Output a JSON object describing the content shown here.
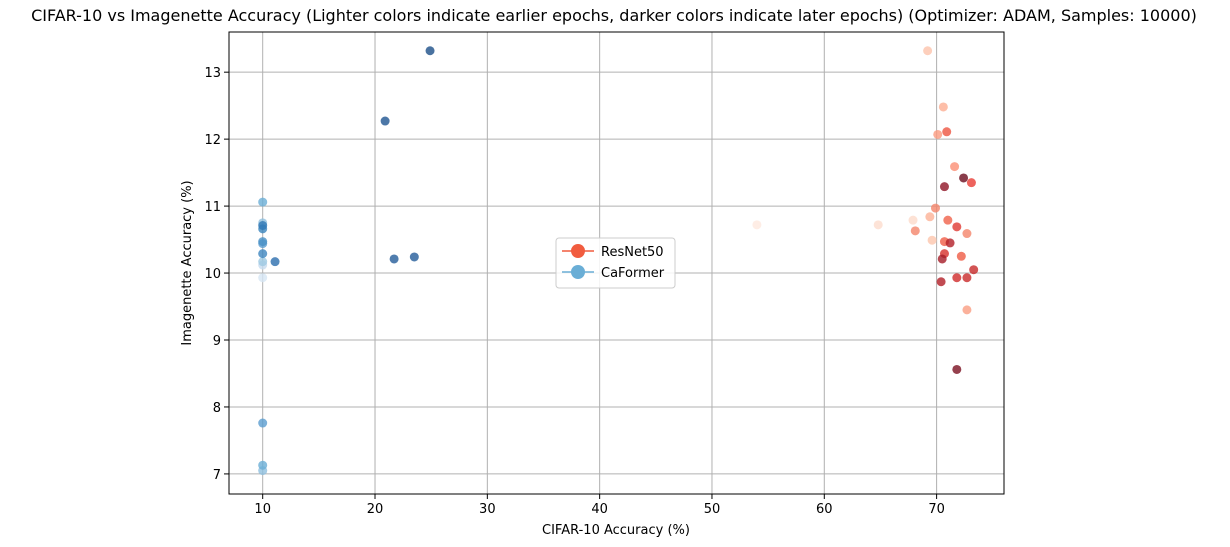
{
  "chart_data": {
    "type": "scatter",
    "title": "CIFAR-10 vs Imagenette Accuracy (Lighter colors indicate earlier epochs, darker colors indicate later epochs) (Optimizer: ADAM, Samples: 10000)",
    "xlabel": "CIFAR-10 Accuracy (%)",
    "ylabel": "Imagenette Accuracy (%)",
    "xlim": [
      7,
      76
    ],
    "ylim": [
      6.7,
      13.6
    ],
    "xticks": [
      10,
      20,
      30,
      40,
      50,
      60,
      70
    ],
    "yticks": [
      7,
      8,
      9,
      10,
      11,
      12,
      13
    ],
    "grid": true,
    "legend_position": "center",
    "series": [
      {
        "name": "ResNet50",
        "legend_color": "#f15c3f",
        "points": [
          {
            "x": 54.0,
            "y": 10.72,
            "color": "#fee8de"
          },
          {
            "x": 64.8,
            "y": 10.72,
            "color": "#fddccd"
          },
          {
            "x": 67.9,
            "y": 10.79,
            "color": "#fddbcb"
          },
          {
            "x": 69.2,
            "y": 13.32,
            "color": "#fcc3ab"
          },
          {
            "x": 69.6,
            "y": 10.49,
            "color": "#fcc6ad"
          },
          {
            "x": 70.6,
            "y": 12.48,
            "color": "#fcae92"
          },
          {
            "x": 70.1,
            "y": 12.07,
            "color": "#fb9a7e"
          },
          {
            "x": 69.4,
            "y": 10.84,
            "color": "#fcb196"
          },
          {
            "x": 68.1,
            "y": 10.63,
            "color": "#f4856a"
          },
          {
            "x": 69.9,
            "y": 10.97,
            "color": "#f4856a"
          },
          {
            "x": 72.7,
            "y": 9.45,
            "color": "#fa9d82"
          },
          {
            "x": 71.6,
            "y": 11.59,
            "color": "#fb8f74"
          },
          {
            "x": 72.7,
            "y": 10.59,
            "color": "#f4856a"
          },
          {
            "x": 70.9,
            "y": 12.11,
            "color": "#ee5541"
          },
          {
            "x": 71.0,
            "y": 10.79,
            "color": "#f0624a"
          },
          {
            "x": 72.2,
            "y": 10.25,
            "color": "#ef5b45"
          },
          {
            "x": 70.7,
            "y": 10.47,
            "color": "#f05d46"
          },
          {
            "x": 73.1,
            "y": 11.35,
            "color": "#e83c34"
          },
          {
            "x": 71.8,
            "y": 10.69,
            "color": "#e03a33"
          },
          {
            "x": 70.7,
            "y": 10.29,
            "color": "#d62f2b"
          },
          {
            "x": 71.8,
            "y": 9.93,
            "color": "#cf2b2b"
          },
          {
            "x": 72.7,
            "y": 9.93,
            "color": "#c92929"
          },
          {
            "x": 73.3,
            "y": 10.05,
            "color": "#c72929"
          },
          {
            "x": 71.2,
            "y": 10.45,
            "color": "#b21e27"
          },
          {
            "x": 70.5,
            "y": 10.21,
            "color": "#a51b27"
          },
          {
            "x": 70.4,
            "y": 9.87,
            "color": "#b21e27"
          },
          {
            "x": 70.7,
            "y": 11.29,
            "color": "#8e1425"
          },
          {
            "x": 72.4,
            "y": 11.42,
            "color": "#6b0d1e"
          },
          {
            "x": 71.8,
            "y": 8.56,
            "color": "#7a1020"
          }
        ]
      },
      {
        "name": "CaFormer",
        "legend_color": "#6aaed6",
        "points": [
          {
            "x": 10.0,
            "y": 9.93,
            "color": "#d6e6f4"
          },
          {
            "x": 10.0,
            "y": 10.12,
            "color": "#c6dbef"
          },
          {
            "x": 10.0,
            "y": 7.05,
            "color": "#8fbfdf"
          },
          {
            "x": 10.0,
            "y": 7.13,
            "color": "#6aaed6"
          },
          {
            "x": 10.0,
            "y": 7.76,
            "color": "#5a9ccf"
          },
          {
            "x": 10.0,
            "y": 11.06,
            "color": "#6aaed6"
          },
          {
            "x": 10.0,
            "y": 10.75,
            "color": "#8fbfdf"
          },
          {
            "x": 10.0,
            "y": 10.17,
            "color": "#9dc9e2"
          },
          {
            "x": 10.0,
            "y": 10.44,
            "color": "#5a9ccf"
          },
          {
            "x": 10.0,
            "y": 10.47,
            "color": "#4a91c6"
          },
          {
            "x": 10.0,
            "y": 10.29,
            "color": "#3d86bf"
          },
          {
            "x": 10.0,
            "y": 10.66,
            "color": "#3a84bd"
          },
          {
            "x": 10.0,
            "y": 10.71,
            "color": "#2f78b5"
          },
          {
            "x": 11.1,
            "y": 10.17,
            "color": "#2c6eae"
          },
          {
            "x": 21.7,
            "y": 10.21,
            "color": "#245d9a"
          },
          {
            "x": 23.5,
            "y": 10.24,
            "color": "#245d9a"
          },
          {
            "x": 20.9,
            "y": 12.27,
            "color": "#1f5591"
          },
          {
            "x": 24.9,
            "y": 13.32,
            "color": "#1c4f88"
          }
        ]
      }
    ]
  }
}
